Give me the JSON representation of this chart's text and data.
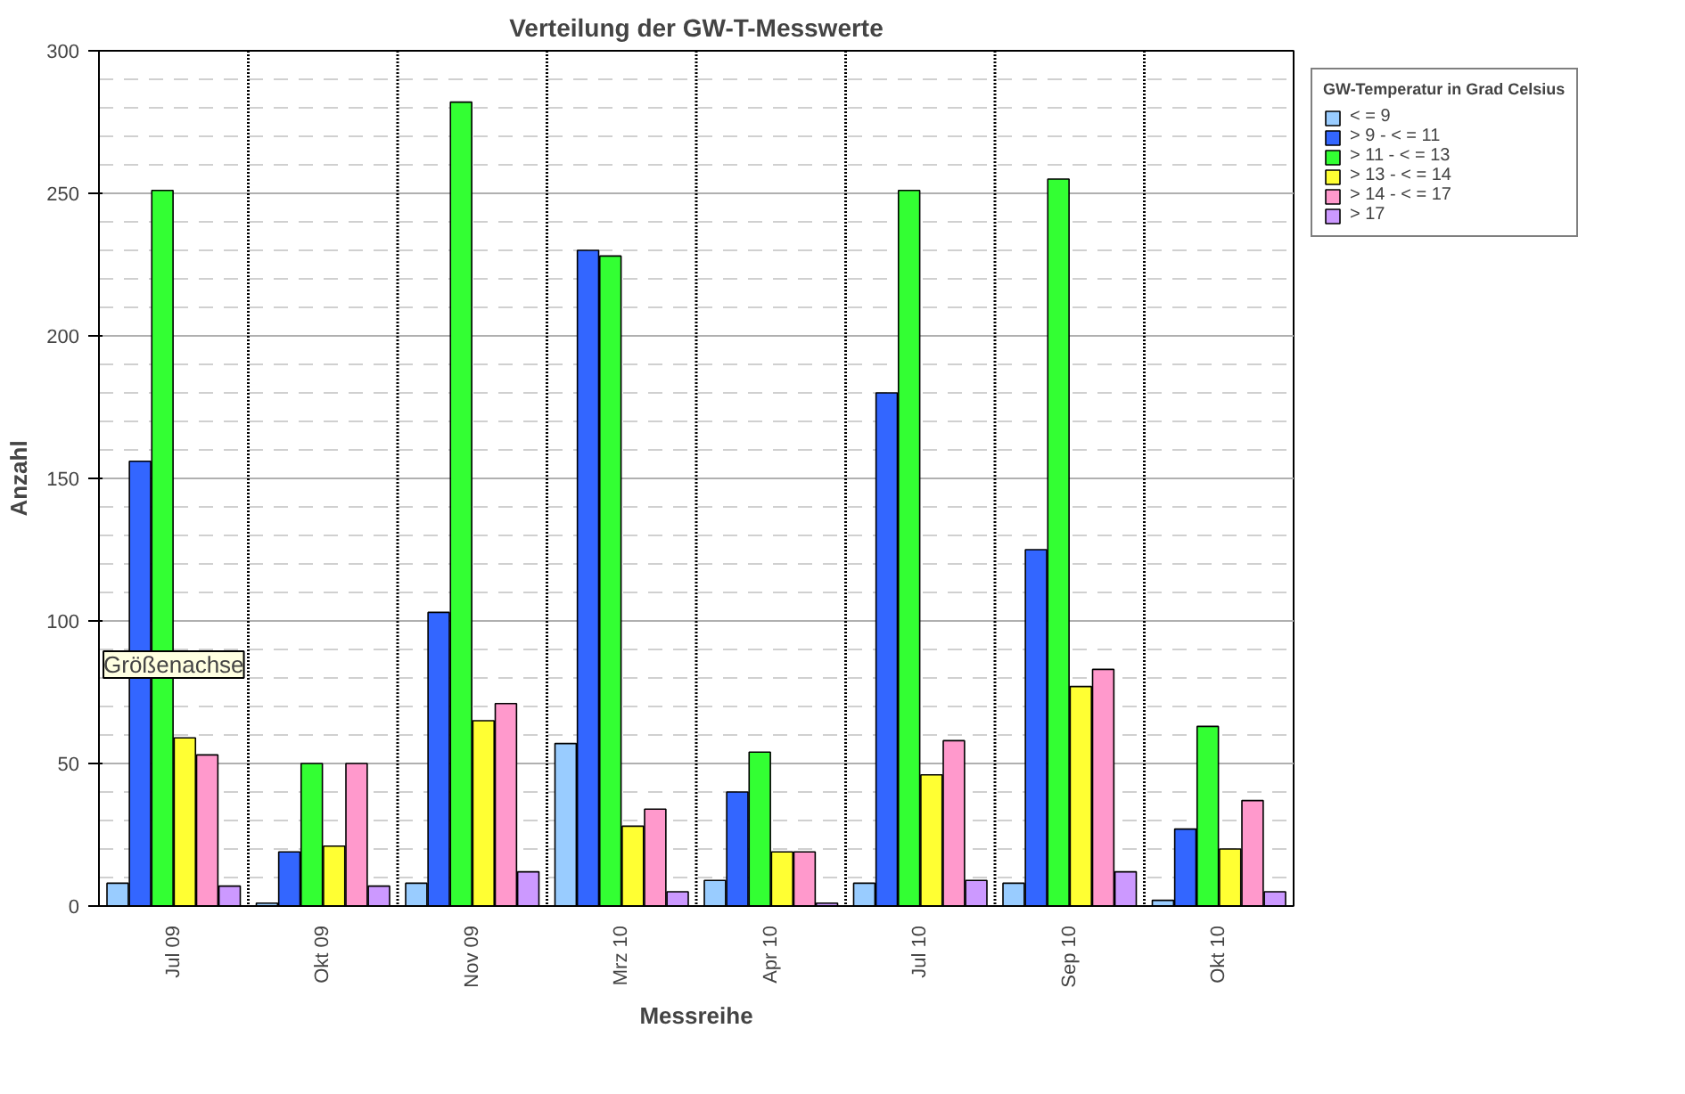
{
  "chart_data": {
    "type": "bar",
    "title": "Verteilung der GW-T-Messwerte",
    "xlabel": "Messreihe",
    "ylabel": "Anzahl",
    "legend_title": "GW-Temperatur in Grad Celsius",
    "categories": [
      "Jul 09",
      "Okt 09",
      "Nov 09",
      "Mrz 10",
      "Apr 10",
      "Jul 10",
      "Sep 10",
      "Okt 10"
    ],
    "series": [
      {
        "name": "< = 9",
        "color": "#99ccff",
        "values": [
          8,
          1,
          8,
          57,
          9,
          8,
          8,
          2
        ]
      },
      {
        "name": "> 9 - < = 11",
        "color": "#3366ff",
        "values": [
          156,
          19,
          103,
          230,
          40,
          180,
          125,
          27
        ]
      },
      {
        "name": "> 11 - < = 13",
        "color": "#33ff33",
        "values": [
          251,
          50,
          282,
          228,
          54,
          251,
          255,
          63
        ]
      },
      {
        "name": "> 13 - < = 14",
        "color": "#ffff33",
        "values": [
          59,
          21,
          65,
          28,
          19,
          46,
          77,
          20
        ]
      },
      {
        "name": "> 14 - < = 17",
        "color": "#ff99cc",
        "values": [
          53,
          50,
          71,
          34,
          19,
          58,
          83,
          37
        ]
      },
      {
        "name": "> 17",
        "color": "#cc99ff",
        "values": [
          7,
          7,
          12,
          5,
          1,
          9,
          12,
          5
        ]
      }
    ],
    "ylim": [
      0,
      300
    ],
    "yticks": [
      0,
      50,
      100,
      150,
      200,
      250,
      300
    ],
    "grid": "y",
    "legend": "right",
    "annotations": [
      "Größenachse"
    ]
  }
}
